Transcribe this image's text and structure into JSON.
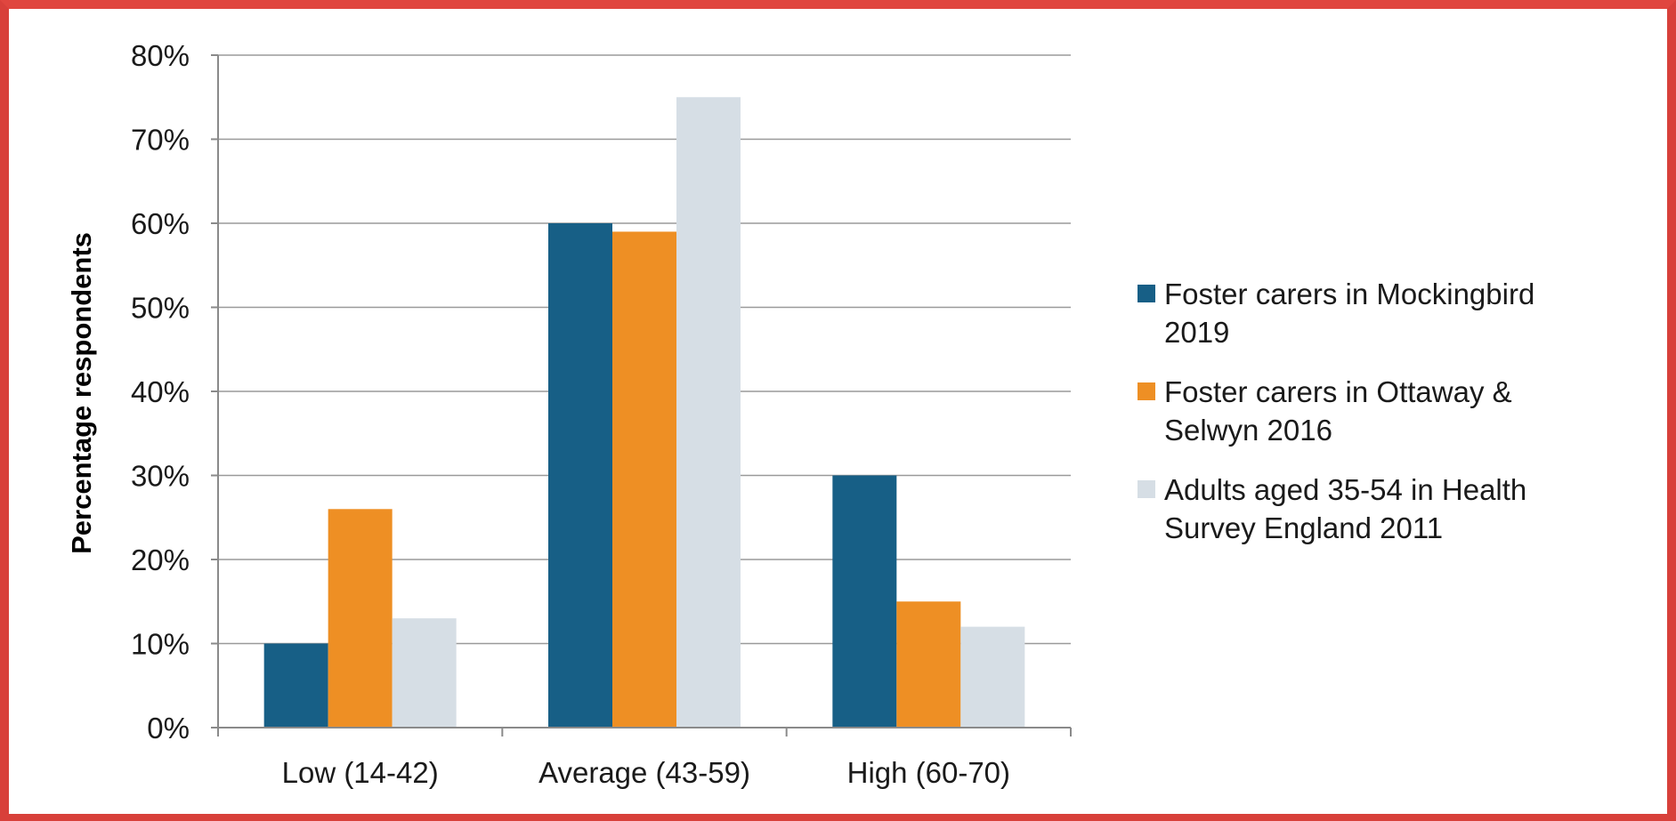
{
  "chart_data": {
    "type": "bar",
    "title": "",
    "xlabel": "",
    "ylabel": "Percentage respondents",
    "ylim": [
      0,
      80
    ],
    "y_ticks": [
      "0%",
      "10%",
      "20%",
      "30%",
      "40%",
      "50%",
      "60%",
      "70%",
      "80%"
    ],
    "categories": [
      "Low (14-42)",
      "Average (43-59)",
      "High (60-70)"
    ],
    "grid": true,
    "legend_position": "right",
    "series": [
      {
        "name": "Foster carers in Mockingbird 2019",
        "legend_lines": [
          "Foster carers in Mockingbird",
          "2019"
        ],
        "color": "#175f86",
        "values": [
          10,
          60,
          30
        ]
      },
      {
        "name": "Foster carers in Ottaway & Selwyn 2016",
        "legend_lines": [
          "Foster carers in Ottaway &",
          "Selwyn 2016"
        ],
        "color": "#ee8f24",
        "values": [
          26,
          59,
          15
        ]
      },
      {
        "name": "Adults aged 35-54 in Health Survey England 2011",
        "legend_lines": [
          "Adults aged 35-54 in Health",
          "Survey England 2011"
        ],
        "color": "#d6dee5",
        "values": [
          13,
          75,
          12
        ]
      }
    ]
  }
}
